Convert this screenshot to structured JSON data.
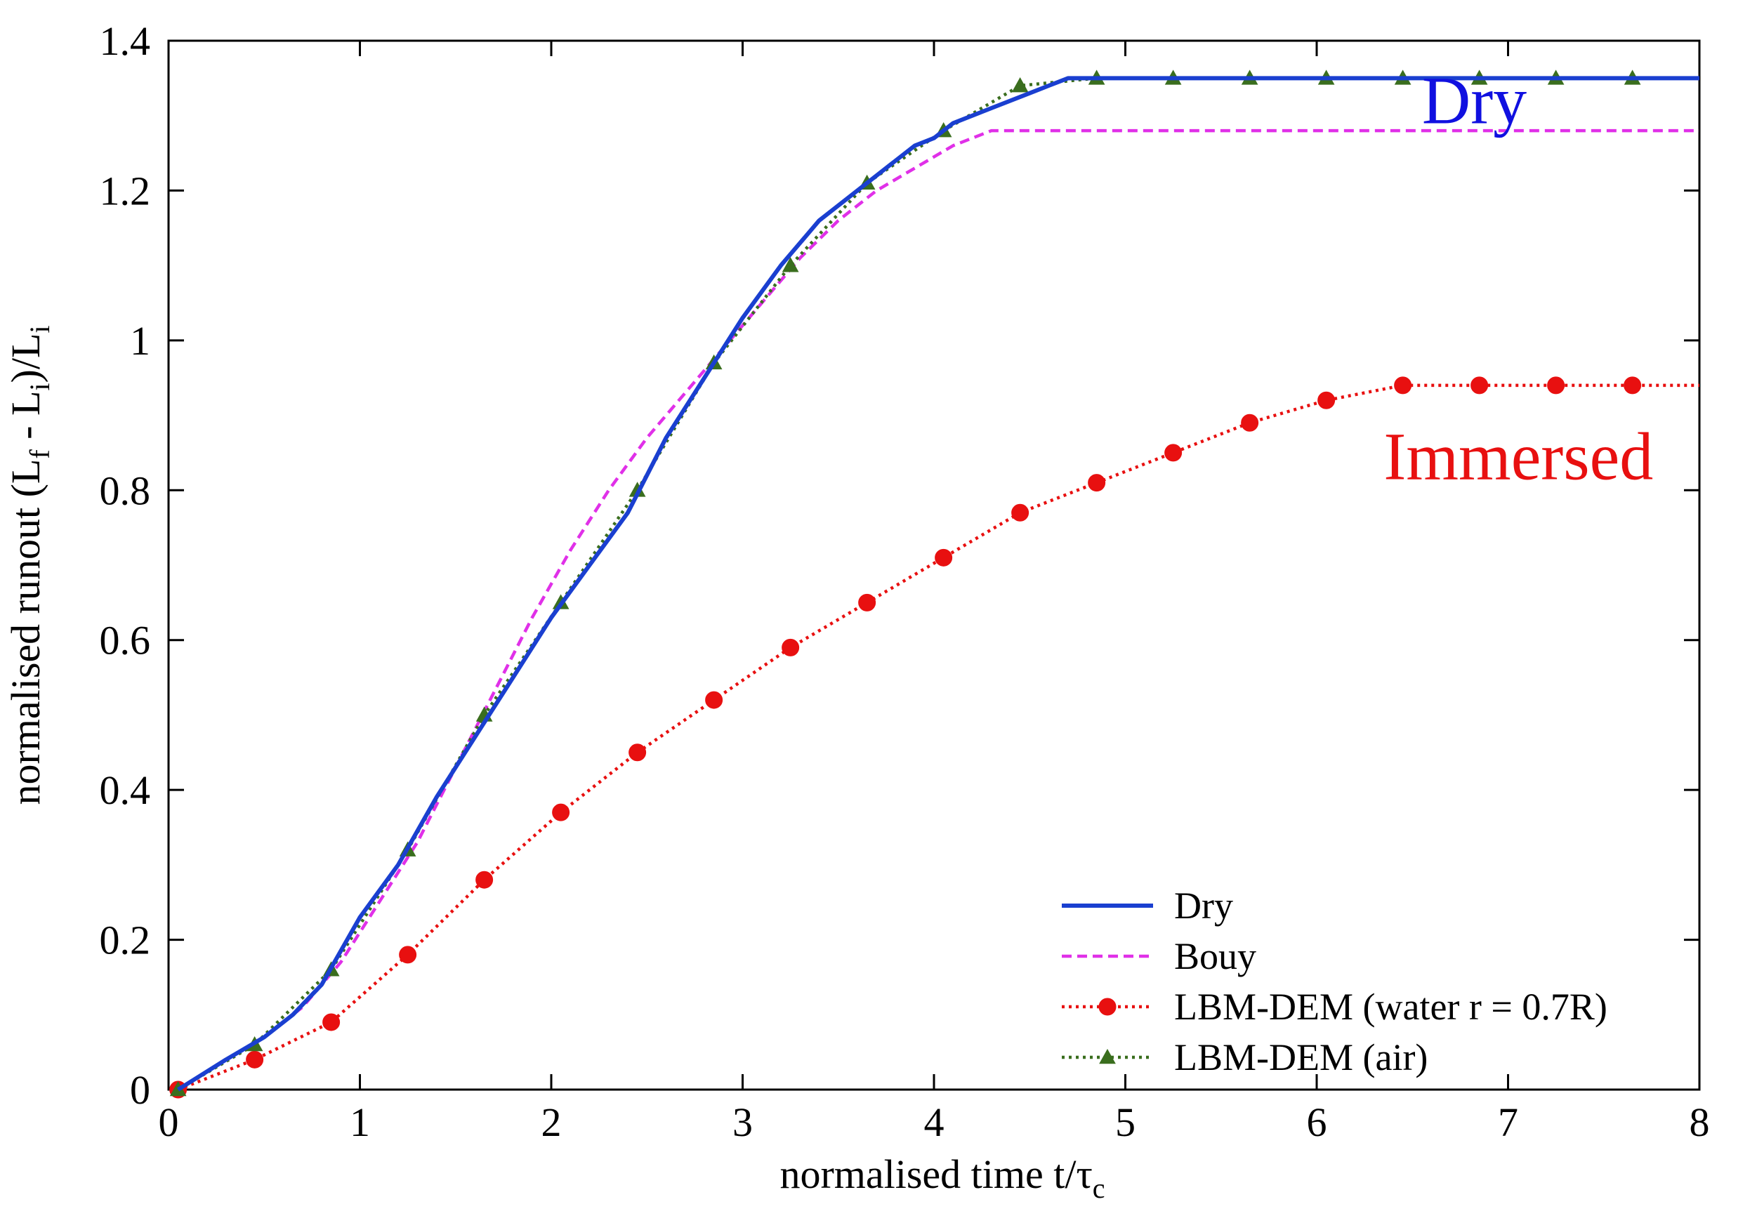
{
  "chart_data": {
    "type": "line",
    "xlabel": {
      "main": "normalised time t/",
      "tau": "τ",
      "tau_sub": "c"
    },
    "ylabel": {
      "p1": "normalised runout (L",
      "s1": "f",
      "p2": " - L",
      "s2": "i",
      "p3": ")/L",
      "s3": "i"
    },
    "xlim": [
      0,
      8
    ],
    "ylim": [
      0,
      1.4
    ],
    "xticks": [
      0,
      1,
      2,
      3,
      4,
      5,
      6,
      7,
      8
    ],
    "xtick_labels": [
      "0",
      "1",
      "2",
      "3",
      "4",
      "5",
      "6",
      "7",
      "8"
    ],
    "yticks": [
      0,
      0.2,
      0.4,
      0.6,
      0.8,
      1.0,
      1.2,
      1.4
    ],
    "ytick_labels": [
      "0",
      "0.2",
      "0.4",
      "0.6",
      "0.8",
      "1",
      "1.2",
      "1.4"
    ],
    "grid": false,
    "legend_position": "bottom-right",
    "annotations": [
      {
        "text": "Dry",
        "color": "#1010e0",
        "x": 6.55,
        "y": 1.29
      },
      {
        "text": "Immersed",
        "color": "#e81010",
        "x": 6.35,
        "y": 0.815
      }
    ],
    "series": [
      {
        "name": "Dry",
        "color": "#1a3fd0",
        "style": "solid",
        "marker": "none",
        "x": [
          0.05,
          0.3,
          0.5,
          0.65,
          0.8,
          1.0,
          1.2,
          1.4,
          1.6,
          1.8,
          2.0,
          2.2,
          2.4,
          2.6,
          2.8,
          3.0,
          3.2,
          3.4,
          3.6,
          3.8,
          3.9,
          4.0,
          4.1,
          4.3,
          4.5,
          4.6,
          4.7,
          5.0,
          6.0,
          7.0,
          8.0
        ],
        "y": [
          0.0,
          0.04,
          0.07,
          0.1,
          0.14,
          0.23,
          0.3,
          0.39,
          0.47,
          0.55,
          0.63,
          0.7,
          0.77,
          0.87,
          0.95,
          1.03,
          1.1,
          1.16,
          1.2,
          1.24,
          1.26,
          1.27,
          1.29,
          1.31,
          1.33,
          1.34,
          1.35,
          1.35,
          1.35,
          1.35,
          1.35
        ]
      },
      {
        "name": "Bouy",
        "color": "#e030e8",
        "style": "dashed",
        "marker": "none",
        "x": [
          0.05,
          0.3,
          0.5,
          0.7,
          0.9,
          1.1,
          1.3,
          1.5,
          1.7,
          1.9,
          2.1,
          2.3,
          2.5,
          2.7,
          2.9,
          3.1,
          3.3,
          3.5,
          3.7,
          3.9,
          4.1,
          4.3,
          5.0,
          6.0,
          7.0,
          8.0
        ],
        "y": [
          0.0,
          0.04,
          0.07,
          0.11,
          0.17,
          0.25,
          0.33,
          0.43,
          0.53,
          0.63,
          0.72,
          0.8,
          0.87,
          0.93,
          0.99,
          1.05,
          1.11,
          1.16,
          1.2,
          1.23,
          1.26,
          1.28,
          1.28,
          1.28,
          1.28,
          1.28
        ]
      },
      {
        "name": "LBM-DEM (water r = 0.7R)",
        "color": "#e81010",
        "style": "dotted",
        "marker": "circle",
        "x": [
          0.05,
          0.45,
          0.85,
          1.25,
          1.65,
          2.05,
          2.45,
          2.85,
          3.25,
          3.65,
          4.05,
          4.45,
          4.85,
          5.25,
          5.65,
          6.05,
          6.45,
          6.85,
          7.25,
          7.65,
          8.0
        ],
        "y": [
          0.0,
          0.04,
          0.09,
          0.18,
          0.28,
          0.37,
          0.45,
          0.52,
          0.59,
          0.65,
          0.71,
          0.77,
          0.81,
          0.85,
          0.89,
          0.92,
          0.94,
          0.94,
          0.94,
          0.94,
          0.94
        ]
      },
      {
        "name": "LBM-DEM (air)",
        "color": "#3a6e1e",
        "style": "dotted",
        "marker": "triangle",
        "x": [
          0.05,
          0.45,
          0.85,
          1.25,
          1.65,
          2.05,
          2.45,
          2.85,
          3.25,
          3.65,
          4.05,
          4.45,
          4.85,
          5.25,
          5.65,
          6.05,
          6.45,
          6.85,
          7.25,
          7.65,
          8.0
        ],
        "y": [
          0.0,
          0.06,
          0.16,
          0.32,
          0.5,
          0.65,
          0.8,
          0.97,
          1.1,
          1.21,
          1.28,
          1.34,
          1.35,
          1.35,
          1.35,
          1.35,
          1.35,
          1.35,
          1.35,
          1.35,
          1.35
        ]
      }
    ]
  }
}
